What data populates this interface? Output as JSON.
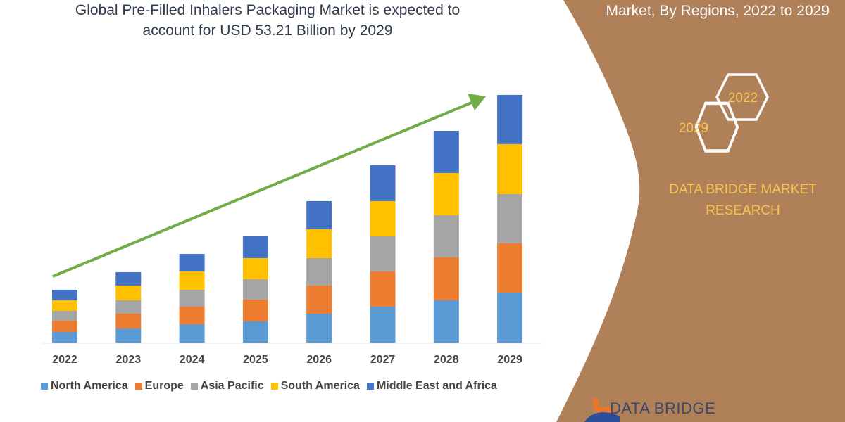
{
  "header": {
    "title_line1": "Global Pre-Filled Inhalers Packaging Market is expected to",
    "title_line2": "account for USD 53.21 Billion by 2029",
    "right_title": "Market, By Regions, 2022 to 2029"
  },
  "badges": {
    "year_end": "2029",
    "year_start": "2022"
  },
  "brand": {
    "line1": "DATA BRIDGE MARKET",
    "line2": "RESEARCH",
    "logo_text": "DATA BRIDGE"
  },
  "colors": {
    "panel": "#b08058",
    "arrow": "#70ad47",
    "brand_text": "#f6c453"
  },
  "chart_data": {
    "type": "bar",
    "stacked": true,
    "categories": [
      "2022",
      "2023",
      "2024",
      "2025",
      "2026",
      "2027",
      "2028",
      "2029"
    ],
    "series": [
      {
        "name": "North America",
        "color": "#5b9bd5",
        "values": [
          2.27,
          3.02,
          3.93,
          4.54,
          6.2,
          7.71,
          9.07,
          10.74
        ]
      },
      {
        "name": "Europe",
        "color": "#ed7d31",
        "values": [
          2.42,
          3.18,
          3.78,
          4.69,
          6.05,
          7.56,
          9.22,
          10.58
        ]
      },
      {
        "name": "Asia Pacific",
        "color": "#a5a5a5",
        "values": [
          2.12,
          2.87,
          3.63,
          4.38,
          5.9,
          7.56,
          9.07,
          10.58
        ]
      },
      {
        "name": "South America",
        "color": "#ffc000",
        "values": [
          2.27,
          3.18,
          3.93,
          4.54,
          6.2,
          7.56,
          9.07,
          10.74
        ]
      },
      {
        "name": "Middle East and Africa",
        "color": "#4472c4",
        "values": [
          2.27,
          2.87,
          3.78,
          4.69,
          6.05,
          7.71,
          9.07,
          10.58
        ]
      }
    ],
    "ylim": [
      0,
      53.21
    ],
    "grid": false,
    "y_axis_shown": false,
    "legend_position": "bottom",
    "trend_arrow": true
  }
}
